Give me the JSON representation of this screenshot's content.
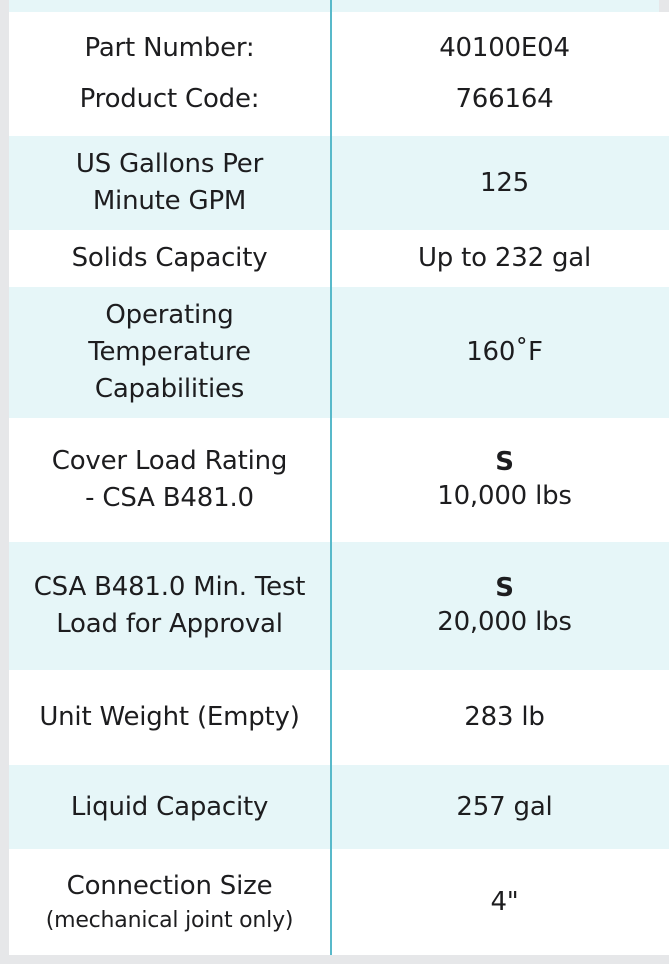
{
  "spec_table": {
    "rows": [
      {
        "labels": [
          "Part Number:",
          "Product Code:"
        ],
        "values": [
          "40100E04",
          "766164"
        ]
      },
      {
        "label_lines": [
          "US Gallons Per",
          "Minute GPM"
        ],
        "value": "125"
      },
      {
        "label": "Solids Capacity",
        "value": "Up to 232 gal"
      },
      {
        "label_lines": [
          "Operating",
          "Temperature",
          "Capabilities"
        ],
        "value": "160˚F"
      },
      {
        "label_lines": [
          "Cover Load Rating",
          "- CSA B481.0"
        ],
        "value_class": "S",
        "value": "10,000 lbs"
      },
      {
        "label_lines": [
          "CSA B481.0 Min. Test",
          "Load for Approval"
        ],
        "value_class": "S",
        "value": "20,000 lbs"
      },
      {
        "label": "Unit Weight (Empty)",
        "value": "283 lb"
      },
      {
        "label": "Liquid Capacity",
        "value": "257 gal"
      },
      {
        "label": "Connection Size",
        "label_note": "(mechanical joint only)",
        "value": "4\""
      }
    ]
  },
  "colors": {
    "row_alt": "#e6f6f8",
    "divider": "#58b9ca",
    "text": "#1d1d1f"
  }
}
